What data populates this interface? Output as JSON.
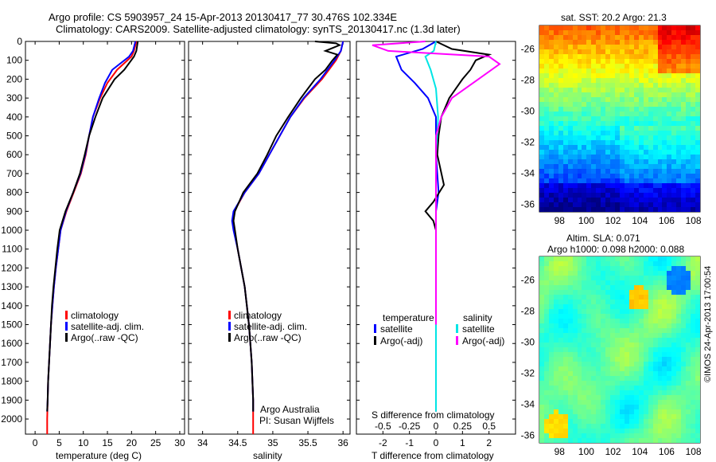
{
  "header": {
    "line1": "Argo profile: CS 5903957_24 15-Apr-2013 20130417_77 30.476S 102.334E",
    "line2": "Climatology: CARS2009. Satellite-adjusted climatology: synTS_20130417.nc (1.3d later)"
  },
  "chart_data": [
    {
      "type": "line",
      "title": "",
      "xlabel": "temperature (deg C)",
      "ylabel": "",
      "xlim": [
        -2,
        31
      ],
      "ylim": [
        2080,
        0
      ],
      "xticks": [
        0,
        5,
        10,
        15,
        20,
        25,
        30
      ],
      "xtick_labels": [
        "0",
        "5",
        "10",
        "15",
        "20",
        "25",
        "30"
      ],
      "yticks": [
        0,
        100,
        200,
        300,
        400,
        500,
        600,
        700,
        800,
        900,
        1000,
        1100,
        1200,
        1300,
        1400,
        1500,
        1600,
        1700,
        1800,
        1900,
        2000
      ],
      "legend": [
        "climatology",
        "satellite-adj. clim.",
        "Argo(..raw -QC)"
      ],
      "series": [
        {
          "name": "climatology",
          "color": "#ff0000",
          "points": [
            [
              21,
              0
            ],
            [
              20.5,
              50
            ],
            [
              20,
              80
            ],
            [
              17,
              150
            ],
            [
              15,
              220
            ],
            [
              13.5,
              300
            ],
            [
              12,
              400
            ],
            [
              11.2,
              500
            ],
            [
              10.5,
              600
            ],
            [
              9.5,
              700
            ],
            [
              8,
              800
            ],
            [
              6.5,
              900
            ],
            [
              5.3,
              1000
            ],
            [
              4.8,
              1100
            ],
            [
              4.3,
              1200
            ],
            [
              3.9,
              1300
            ],
            [
              3.6,
              1400
            ],
            [
              3.3,
              1500
            ],
            [
              3.1,
              1600
            ],
            [
              2.9,
              1700
            ],
            [
              2.7,
              1800
            ],
            [
              2.6,
              1900
            ],
            [
              2.5,
              2000
            ],
            [
              2.5,
              2080
            ]
          ]
        },
        {
          "name": "satellite-adj. clim.",
          "color": "#0000ff",
          "points": [
            [
              20.8,
              0
            ],
            [
              20.3,
              50
            ],
            [
              19.5,
              80
            ],
            [
              16,
              150
            ],
            [
              14.5,
              220
            ],
            [
              13.3,
              300
            ],
            [
              12,
              400
            ],
            [
              11.2,
              500
            ],
            [
              10.4,
              600
            ],
            [
              9.4,
              700
            ],
            [
              7.9,
              800
            ],
            [
              6.4,
              900
            ],
            [
              5.3,
              1000
            ],
            [
              4.8,
              1100
            ],
            [
              4.3,
              1200
            ],
            [
              3.9,
              1300
            ],
            [
              3.6,
              1400
            ],
            [
              3.3,
              1500
            ],
            [
              3.1,
              1600
            ],
            [
              2.9,
              1700
            ],
            [
              2.7,
              1800
            ],
            [
              2.6,
              1900
            ],
            [
              2.5,
              1960
            ]
          ]
        },
        {
          "name": "Argo(..raw -QC)",
          "color": "#000000",
          "points": [
            [
              21.3,
              0
            ],
            [
              21,
              50
            ],
            [
              20.5,
              80
            ],
            [
              18.5,
              150
            ],
            [
              16.5,
              200
            ],
            [
              14,
              300
            ],
            [
              12.5,
              400
            ],
            [
              11.2,
              500
            ],
            [
              10.3,
              600
            ],
            [
              9.3,
              700
            ],
            [
              7.9,
              800
            ],
            [
              6.3,
              900
            ],
            [
              5.1,
              1000
            ],
            [
              4.6,
              1100
            ],
            [
              4.2,
              1200
            ],
            [
              3.8,
              1300
            ],
            [
              3.5,
              1400
            ],
            [
              3.3,
              1500
            ],
            [
              3.1,
              1600
            ],
            [
              2.9,
              1700
            ],
            [
              2.7,
              1800
            ],
            [
              2.6,
              1900
            ],
            [
              2.5,
              1960
            ]
          ]
        }
      ]
    },
    {
      "type": "line",
      "title": "",
      "xlabel": "salinity",
      "ylabel": "",
      "xlim": [
        33.8,
        36.1
      ],
      "ylim": [
        2080,
        0
      ],
      "xticks": [
        34,
        34.5,
        35,
        35.5,
        36
      ],
      "xtick_labels": [
        "34",
        "34.5",
        "35",
        "35.5",
        "36"
      ],
      "legend": [
        "climatology",
        "satellite-adj. clim.",
        "Argo(..raw -QC)"
      ],
      "annotation": [
        "Argo Australia",
        "PI: Susan Wijffels"
      ],
      "series": [
        {
          "name": "climatology",
          "color": "#ff0000",
          "points": [
            [
              36,
              0
            ],
            [
              35.97,
              50
            ],
            [
              35.9,
              100
            ],
            [
              35.7,
              200
            ],
            [
              35.45,
              300
            ],
            [
              35.25,
              400
            ],
            [
              35.1,
              500
            ],
            [
              34.95,
              600
            ],
            [
              34.8,
              700
            ],
            [
              34.6,
              800
            ],
            [
              34.45,
              900
            ],
            [
              34.43,
              950
            ],
            [
              34.45,
              1000
            ],
            [
              34.5,
              1100
            ],
            [
              34.55,
              1200
            ],
            [
              34.6,
              1300
            ],
            [
              34.63,
              1400
            ],
            [
              34.66,
              1500
            ],
            [
              34.68,
              1600
            ],
            [
              34.7,
              1700
            ],
            [
              34.71,
              1800
            ],
            [
              34.72,
              1900
            ],
            [
              34.72,
              2000
            ],
            [
              34.72,
              2080
            ]
          ]
        },
        {
          "name": "satellite-adj. clim.",
          "color": "#0000ff",
          "points": [
            [
              36,
              0
            ],
            [
              35.97,
              50
            ],
            [
              35.88,
              100
            ],
            [
              35.68,
              200
            ],
            [
              35.44,
              300
            ],
            [
              35.25,
              400
            ],
            [
              35.1,
              500
            ],
            [
              34.95,
              600
            ],
            [
              34.8,
              700
            ],
            [
              34.6,
              800
            ],
            [
              34.44,
              900
            ],
            [
              34.42,
              950
            ],
            [
              34.44,
              1000
            ],
            [
              34.5,
              1100
            ],
            [
              34.55,
              1200
            ],
            [
              34.6,
              1300
            ],
            [
              34.63,
              1400
            ],
            [
              34.66,
              1500
            ],
            [
              34.68,
              1600
            ],
            [
              34.7,
              1700
            ],
            [
              34.71,
              1800
            ],
            [
              34.72,
              1900
            ],
            [
              34.72,
              1960
            ]
          ]
        },
        {
          "name": "Argo(..raw -QC)",
          "color": "#000000",
          "points": [
            [
              35.6,
              0
            ],
            [
              35.9,
              10
            ],
            [
              35.95,
              20
            ],
            [
              35.75,
              50
            ],
            [
              35.92,
              70
            ],
            [
              35.85,
              100
            ],
            [
              35.75,
              150
            ],
            [
              35.6,
              200
            ],
            [
              35.4,
              300
            ],
            [
              35.22,
              400
            ],
            [
              35.05,
              500
            ],
            [
              34.92,
              600
            ],
            [
              34.78,
              700
            ],
            [
              34.58,
              800
            ],
            [
              34.46,
              900
            ],
            [
              34.44,
              950
            ],
            [
              34.46,
              1000
            ],
            [
              34.5,
              1100
            ],
            [
              34.55,
              1200
            ],
            [
              34.6,
              1300
            ],
            [
              34.63,
              1400
            ],
            [
              34.66,
              1500
            ],
            [
              34.68,
              1600
            ],
            [
              34.7,
              1700
            ],
            [
              34.71,
              1800
            ],
            [
              34.72,
              1900
            ],
            [
              34.72,
              1960
            ]
          ]
        }
      ]
    },
    {
      "type": "line",
      "title": "",
      "xlabel": "T difference from climatology",
      "xlabel_top": "S difference from climatology",
      "ylabel": "",
      "xlim": [
        -3,
        3
      ],
      "ylim": [
        2080,
        0
      ],
      "xticks": [
        -2,
        -1,
        0,
        1,
        2
      ],
      "xtick_labels": [
        "-2",
        "-1",
        "0",
        "1",
        "2"
      ],
      "xticks_top": [
        -0.5,
        -0.25,
        0,
        0.25,
        0.5
      ],
      "xtick_labels_top": [
        "-0.5",
        "-0.25",
        "0",
        "0.25",
        "0.5"
      ],
      "legend_titles": [
        "temperature",
        "salinity"
      ],
      "legend": [
        "satellite",
        "Argo(-adj)",
        "satellite",
        "Argo(-adj)"
      ],
      "series": [
        {
          "name": "temperature satellite",
          "color": "#0000ff",
          "points": [
            [
              0,
              0
            ],
            [
              -0.5,
              40
            ],
            [
              -1.5,
              80
            ],
            [
              -1.3,
              150
            ],
            [
              -0.8,
              220
            ],
            [
              -0.3,
              300
            ],
            [
              0,
              400
            ],
            [
              0,
              600
            ],
            [
              0.1,
              800
            ],
            [
              0,
              900
            ],
            [
              0,
              1000
            ],
            [
              0,
              1500
            ],
            [
              0,
              1960
            ]
          ]
        },
        {
          "name": "temperature Argo(-adj)",
          "color": "#000000",
          "points": [
            [
              0,
              0
            ],
            [
              0.6,
              40
            ],
            [
              2.0,
              70
            ],
            [
              1.5,
              100
            ],
            [
              1.3,
              150
            ],
            [
              1.0,
              200
            ],
            [
              0.5,
              300
            ],
            [
              0.2,
              400
            ],
            [
              0.1,
              500
            ],
            [
              0.05,
              600
            ],
            [
              0.3,
              760
            ],
            [
              -0.1,
              850
            ],
            [
              -0.4,
              900
            ],
            [
              -0.1,
              950
            ],
            [
              0,
              1000
            ],
            [
              0,
              1500
            ],
            [
              0,
              1960
            ]
          ]
        },
        {
          "name": "salinity satellite",
          "color": "#00e5e5",
          "points": [
            [
              0,
              0
            ],
            [
              -0.02,
              50
            ],
            [
              -0.1,
              80
            ],
            [
              -0.05,
              150
            ],
            [
              0,
              250
            ],
            [
              0.02,
              400
            ],
            [
              0,
              600
            ],
            [
              0,
              800
            ],
            [
              0,
              1000
            ],
            [
              0,
              1500
            ],
            [
              0,
              1960
            ]
          ]
        },
        {
          "name": "salinity Argo(-adj)",
          "color": "#ff00ff",
          "points": [
            [
              -0.1,
              0
            ],
            [
              -0.6,
              20
            ],
            [
              -0.45,
              50
            ],
            [
              0.5,
              80
            ],
            [
              0.6,
              120
            ],
            [
              0.4,
              200
            ],
            [
              0.15,
              300
            ],
            [
              0.05,
              400
            ],
            [
              0,
              500
            ],
            [
              0,
              600
            ],
            [
              0,
              800
            ],
            [
              0,
              1000
            ],
            [
              0,
              1500
            ]
          ]
        }
      ]
    }
  ],
  "maps": {
    "sst": {
      "title": "sat. SST: 20.2 Argo: 21.3",
      "xtick_labels": [
        "98",
        "100",
        "102",
        "104",
        "106",
        "108"
      ],
      "xticks": [
        98,
        100,
        102,
        104,
        106,
        108
      ],
      "xlim": [
        96.5,
        108.5
      ],
      "ytick_labels": [
        "-26",
        "-28",
        "-30",
        "-32",
        "-34",
        "-36"
      ],
      "yticks": [
        -26,
        -28,
        -30,
        -32,
        -34,
        -36
      ],
      "ylim": [
        -36.5,
        -24.5
      ],
      "marker": [
        102.33,
        -30.48
      ]
    },
    "sla": {
      "title_line1": "Altim. SLA: 0.071",
      "title_line2": "Argo h1000: 0.098 h2000: 0.088",
      "xtick_labels": [
        "98",
        "100",
        "102",
        "104",
        "106",
        "108"
      ],
      "xticks": [
        98,
        100,
        102,
        104,
        106,
        108
      ],
      "xlim": [
        96.5,
        108.5
      ],
      "ytick_labels": [
        "-26",
        "-28",
        "-30",
        "-32",
        "-34",
        "-36"
      ],
      "yticks": [
        -26,
        -28,
        -30,
        -32,
        -34,
        -36
      ],
      "ylim": [
        -36.5,
        -24.5
      ],
      "marker": [
        102.33,
        -30.48
      ]
    }
  },
  "credit": "©IMOS 24-Apr-2013 17:00:54",
  "colors": {
    "climatology": "#ff0000",
    "satellite_adj": "#0000ff",
    "argo": "#000000",
    "salinity_satellite": "#00e5e5",
    "salinity_argo": "#ff00ff"
  }
}
